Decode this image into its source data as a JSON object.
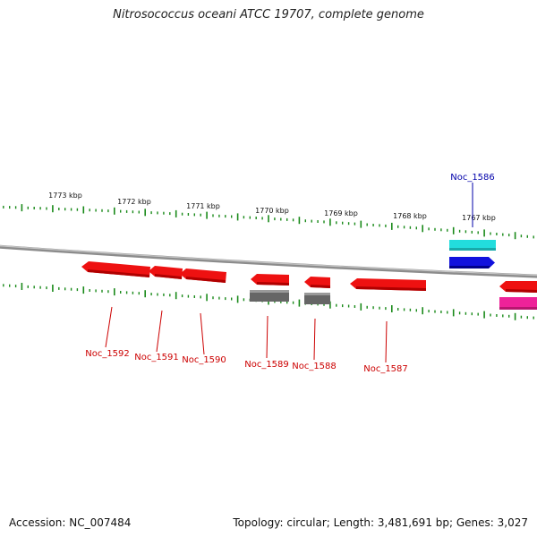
{
  "title": "Nitrosococcus oceani ATCC 19707, complete genome",
  "footer": {
    "accession": "Accession: NC_007484",
    "summary": "Topology: circular; Length: 3,481,691 bp; Genes: 3,027"
  },
  "colors": {
    "tick": "#1a8a1a",
    "backbone": "#8c8c8c",
    "gene_red": "#ee1111",
    "gene_gray": "#666666",
    "cyan": "#22dddd",
    "blue": "#1111dd",
    "magenta": "#ee2299",
    "label_red": "#cc0000",
    "label_blue": "#0000aa"
  },
  "scale": {
    "unit": "kbp",
    "labels": [
      "1773 kbp",
      "1772 kbp",
      "1771 kbp",
      "1770 kbp",
      "1769 kbp",
      "1768 kbp",
      "1767 kbp"
    ]
  },
  "genes": [
    {
      "label": "Noc_1592",
      "strand": "minus",
      "color": "red"
    },
    {
      "label": "Noc_1591",
      "strand": "minus",
      "color": "red"
    },
    {
      "label": "Noc_1590",
      "strand": "minus",
      "color": "red"
    },
    {
      "label": "Noc_1589",
      "strand": "minus",
      "color": "red"
    },
    {
      "label": "Noc_1588",
      "strand": "minus",
      "color": "red"
    },
    {
      "label": "Noc_1587",
      "strand": "minus",
      "color": "red"
    },
    {
      "label": "Noc_1586",
      "strand": "plus",
      "color": "blue"
    }
  ]
}
